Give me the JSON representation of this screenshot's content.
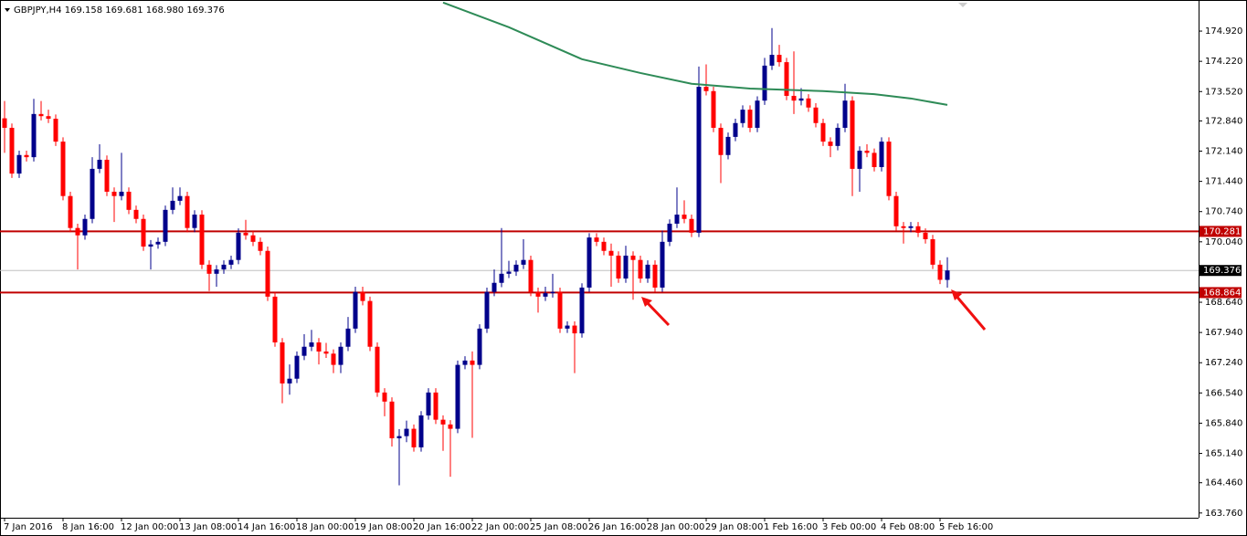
{
  "chart_data": {
    "type": "candlestick",
    "title": "GBPJPY,H4  169.158 169.681 168.980 169.376",
    "categories": [
      "7 Jan 2016",
      null,
      null,
      null,
      null,
      null,
      null,
      null,
      "8 Jan 16:00",
      null,
      null,
      null,
      null,
      null,
      null,
      null,
      "12 Jan 00:00",
      null,
      null,
      null,
      null,
      null,
      null,
      null,
      "13 Jan 08:00",
      null,
      null,
      null,
      null,
      null,
      null,
      null,
      "14 Jan 16:00",
      null,
      null,
      null,
      null,
      null,
      null,
      null,
      "18 Jan 00:00",
      null,
      null,
      null,
      null,
      null,
      null,
      null,
      "19 Jan 08:00",
      null,
      null,
      null,
      null,
      null,
      null,
      null,
      "20 Jan 16:00",
      null,
      null,
      null,
      null,
      null,
      null,
      null,
      "22 Jan 00:00",
      null,
      null,
      null,
      null,
      null,
      null,
      null,
      "25 Jan 08:00",
      null,
      null,
      null,
      null,
      null,
      null,
      null,
      "26 Jan 16:00",
      null,
      null,
      null,
      null,
      null,
      null,
      null,
      "28 Jan 00:00",
      null,
      null,
      null,
      null,
      null,
      null,
      null,
      "29 Jan 08:00",
      null,
      null,
      null,
      null,
      null,
      null,
      null,
      "1 Feb 16:00",
      null,
      null,
      null,
      null,
      null,
      null,
      null,
      "3 Feb 00:00",
      null,
      null,
      null,
      null,
      null,
      null,
      null,
      "4 Feb 08:00",
      null,
      null,
      null,
      null,
      null,
      null,
      null,
      "5 Feb 16:00",
      null
    ],
    "candles": [
      [
        172.9,
        173.3,
        172.1,
        172.68
      ],
      [
        172.68,
        172.78,
        171.52,
        171.62
      ],
      [
        171.62,
        172.15,
        171.52,
        172.05
      ],
      [
        172.05,
        172.15,
        171.9,
        172.0
      ],
      [
        172.0,
        173.35,
        171.9,
        173.0
      ],
      [
        173.0,
        173.3,
        172.85,
        172.95
      ],
      [
        172.95,
        173.1,
        172.79,
        172.89
      ],
      [
        172.89,
        172.99,
        172.26,
        172.36
      ],
      [
        172.36,
        172.46,
        171.0,
        171.1
      ],
      [
        171.1,
        171.2,
        170.26,
        170.36
      ],
      [
        170.36,
        170.46,
        169.4,
        170.19
      ],
      [
        170.19,
        170.67,
        170.09,
        170.57
      ],
      [
        170.57,
        172.0,
        170.47,
        171.73
      ],
      [
        171.73,
        172.3,
        171.63,
        171.94
      ],
      [
        171.94,
        172.04,
        171.1,
        171.2
      ],
      [
        171.2,
        171.3,
        170.5,
        171.1
      ],
      [
        171.1,
        172.1,
        171.0,
        171.2
      ],
      [
        171.2,
        171.3,
        170.68,
        170.78
      ],
      [
        170.78,
        170.88,
        170.47,
        170.57
      ],
      [
        170.57,
        170.67,
        169.83,
        169.93
      ],
      [
        169.93,
        170.08,
        169.4,
        169.98
      ],
      [
        169.98,
        170.14,
        169.88,
        170.04
      ],
      [
        170.04,
        170.88,
        169.94,
        170.78
      ],
      [
        170.78,
        171.3,
        170.68,
        170.99
      ],
      [
        170.99,
        171.3,
        170.89,
        171.1
      ],
      [
        171.1,
        171.2,
        170.26,
        170.36
      ],
      [
        170.36,
        170.77,
        170.26,
        170.67
      ],
      [
        170.67,
        170.77,
        169.41,
        169.51
      ],
      [
        169.51,
        169.61,
        168.9,
        169.3
      ],
      [
        169.3,
        169.5,
        169.0,
        169.4
      ],
      [
        169.4,
        169.61,
        169.3,
        169.51
      ],
      [
        169.51,
        169.72,
        169.41,
        169.62
      ],
      [
        169.62,
        170.35,
        169.52,
        170.25
      ],
      [
        170.25,
        170.55,
        170.09,
        170.19
      ],
      [
        170.19,
        170.29,
        169.94,
        170.04
      ],
      [
        170.04,
        170.14,
        169.73,
        169.83
      ],
      [
        169.83,
        169.93,
        168.67,
        168.77
      ],
      [
        168.77,
        168.87,
        167.61,
        167.71
      ],
      [
        167.71,
        167.81,
        166.3,
        166.76
      ],
      [
        166.76,
        167.2,
        166.5,
        166.87
      ],
      [
        166.87,
        167.5,
        166.77,
        167.4
      ],
      [
        167.4,
        167.9,
        167.3,
        167.61
      ],
      [
        167.61,
        168.0,
        167.51,
        167.71
      ],
      [
        167.71,
        167.81,
        167.2,
        167.5
      ],
      [
        167.5,
        167.7,
        167.35,
        167.45
      ],
      [
        167.45,
        167.55,
        167.0,
        167.19
      ],
      [
        167.19,
        167.71,
        167.0,
        167.61
      ],
      [
        167.61,
        168.3,
        167.51,
        168.03
      ],
      [
        168.03,
        169.0,
        167.93,
        168.88
      ],
      [
        168.88,
        169.0,
        168.57,
        168.67
      ],
      [
        168.67,
        168.77,
        167.51,
        167.61
      ],
      [
        167.61,
        167.71,
        166.45,
        166.55
      ],
      [
        166.55,
        166.65,
        166.0,
        166.34
      ],
      [
        166.34,
        166.44,
        165.3,
        165.49
      ],
      [
        165.49,
        165.7,
        164.4,
        165.54
      ],
      [
        165.54,
        165.9,
        165.4,
        165.71
      ],
      [
        165.71,
        165.81,
        165.18,
        165.28
      ],
      [
        165.28,
        166.12,
        165.18,
        166.02
      ],
      [
        166.02,
        166.65,
        165.92,
        166.55
      ],
      [
        166.55,
        166.65,
        165.82,
        165.92
      ],
      [
        165.92,
        166.02,
        165.2,
        165.81
      ],
      [
        165.81,
        165.91,
        164.6,
        165.71
      ],
      [
        165.71,
        167.29,
        165.61,
        167.19
      ],
      [
        167.19,
        167.39,
        167.09,
        167.29
      ],
      [
        167.29,
        167.5,
        165.5,
        167.19
      ],
      [
        167.19,
        168.13,
        167.09,
        168.03
      ],
      [
        168.03,
        168.98,
        167.93,
        168.88
      ],
      [
        168.88,
        169.4,
        168.78,
        169.09
      ],
      [
        169.09,
        170.36,
        168.99,
        169.3
      ],
      [
        169.3,
        169.6,
        169.2,
        169.35
      ],
      [
        169.35,
        169.61,
        169.25,
        169.51
      ],
      [
        169.51,
        170.1,
        169.41,
        169.62
      ],
      [
        169.62,
        169.72,
        168.78,
        168.88
      ],
      [
        168.88,
        168.98,
        168.4,
        168.77
      ],
      [
        168.77,
        169.0,
        168.67,
        168.85
      ],
      [
        168.85,
        169.3,
        168.75,
        168.88
      ],
      [
        168.88,
        168.98,
        167.93,
        168.03
      ],
      [
        168.03,
        168.2,
        167.93,
        168.1
      ],
      [
        168.1,
        168.2,
        167.0,
        167.92
      ],
      [
        167.92,
        169.08,
        167.82,
        168.98
      ],
      [
        168.98,
        170.24,
        168.88,
        170.14
      ],
      [
        170.14,
        170.24,
        169.94,
        170.04
      ],
      [
        170.04,
        170.14,
        169.73,
        169.83
      ],
      [
        169.83,
        170.0,
        169.0,
        169.72
      ],
      [
        169.72,
        169.82,
        169.09,
        169.19
      ],
      [
        169.19,
        169.95,
        169.09,
        169.72
      ],
      [
        169.72,
        169.82,
        168.7,
        169.62
      ],
      [
        169.62,
        169.72,
        169.09,
        169.19
      ],
      [
        169.19,
        169.61,
        169.09,
        169.51
      ],
      [
        169.51,
        169.61,
        168.88,
        168.98
      ],
      [
        168.98,
        170.3,
        168.88,
        170.04
      ],
      [
        170.04,
        170.56,
        169.94,
        170.46
      ],
      [
        170.46,
        171.3,
        170.36,
        170.67
      ],
      [
        170.67,
        171.0,
        170.47,
        170.57
      ],
      [
        170.57,
        170.67,
        170.15,
        170.25
      ],
      [
        170.25,
        174.1,
        170.15,
        173.63
      ],
      [
        173.63,
        174.15,
        173.43,
        173.53
      ],
      [
        173.53,
        173.63,
        172.58,
        172.68
      ],
      [
        172.68,
        172.78,
        171.4,
        172.05
      ],
      [
        172.05,
        172.57,
        171.95,
        172.47
      ],
      [
        172.47,
        172.89,
        172.37,
        172.79
      ],
      [
        172.79,
        173.2,
        172.69,
        173.1
      ],
      [
        173.1,
        173.2,
        172.58,
        172.68
      ],
      [
        172.68,
        173.41,
        172.58,
        173.31
      ],
      [
        173.31,
        174.3,
        173.21,
        174.12
      ],
      [
        174.12,
        174.99,
        174.02,
        174.37
      ],
      [
        174.37,
        174.6,
        174.1,
        174.2
      ],
      [
        174.2,
        174.3,
        173.32,
        173.42
      ],
      [
        173.42,
        174.45,
        173.0,
        173.31
      ],
      [
        173.31,
        173.6,
        173.2,
        173.36
      ],
      [
        173.36,
        173.46,
        173.05,
        173.15
      ],
      [
        173.15,
        173.25,
        172.69,
        172.79
      ],
      [
        172.79,
        172.89,
        172.26,
        172.36
      ],
      [
        172.36,
        172.46,
        172.0,
        172.26
      ],
      [
        172.26,
        172.78,
        172.16,
        172.68
      ],
      [
        172.68,
        173.7,
        172.58,
        173.31
      ],
      [
        173.31,
        173.41,
        171.1,
        171.73
      ],
      [
        171.73,
        172.25,
        171.2,
        172.15
      ],
      [
        172.15,
        172.3,
        172.0,
        172.1
      ],
      [
        172.1,
        172.2,
        171.67,
        171.77
      ],
      [
        171.77,
        172.46,
        171.67,
        172.36
      ],
      [
        172.36,
        172.46,
        171.0,
        171.1
      ],
      [
        171.1,
        171.2,
        170.3,
        170.4
      ],
      [
        170.4,
        170.5,
        170.0,
        170.36
      ],
      [
        170.36,
        170.5,
        170.26,
        170.4
      ],
      [
        170.4,
        170.5,
        170.15,
        170.25
      ],
      [
        170.25,
        170.35,
        170.0,
        170.1
      ],
      [
        170.1,
        170.2,
        169.41,
        169.51
      ],
      [
        169.51,
        169.61,
        169.06,
        169.16
      ],
      [
        169.158,
        169.681,
        168.98,
        169.376
      ]
    ],
    "up_color": "#00008b",
    "down_color": "#ff0000",
    "moving_average": {
      "color": "#2e8b57",
      "x": [
        60,
        69,
        79,
        87,
        94,
        102,
        112,
        119,
        124,
        129
      ],
      "values": [
        175.58,
        175.01,
        174.27,
        173.95,
        173.7,
        173.59,
        173.53,
        173.46,
        173.36,
        173.21
      ]
    },
    "levels": [
      170.281,
      168.864
    ],
    "level_color": "#c00000",
    "current_price": 169.376,
    "ylim": [
      163.65,
      175.64
    ],
    "yticks": [
      {
        "value": 174.92,
        "label": "174.920"
      },
      {
        "value": 174.22,
        "label": "174.220"
      },
      {
        "value": 173.52,
        "label": "173.520"
      },
      {
        "value": 172.84,
        "label": "172.840"
      },
      {
        "value": 172.14,
        "label": "172.140"
      },
      {
        "value": 171.44,
        "label": "171.440"
      },
      {
        "value": 170.74,
        "label": "170.740"
      },
      {
        "value": 170.04,
        "label": "170.040"
      },
      {
        "value": 168.64,
        "label": "168.640"
      },
      {
        "value": 167.94,
        "label": "167.940"
      },
      {
        "value": 167.24,
        "label": "167.240"
      },
      {
        "value": 166.54,
        "label": "166.540"
      },
      {
        "value": 165.84,
        "label": "165.840"
      },
      {
        "value": 165.14,
        "label": "165.140"
      },
      {
        "value": 164.46,
        "label": "164.460"
      },
      {
        "value": 163.76,
        "label": "163.760"
      }
    ],
    "grid": false
  }
}
